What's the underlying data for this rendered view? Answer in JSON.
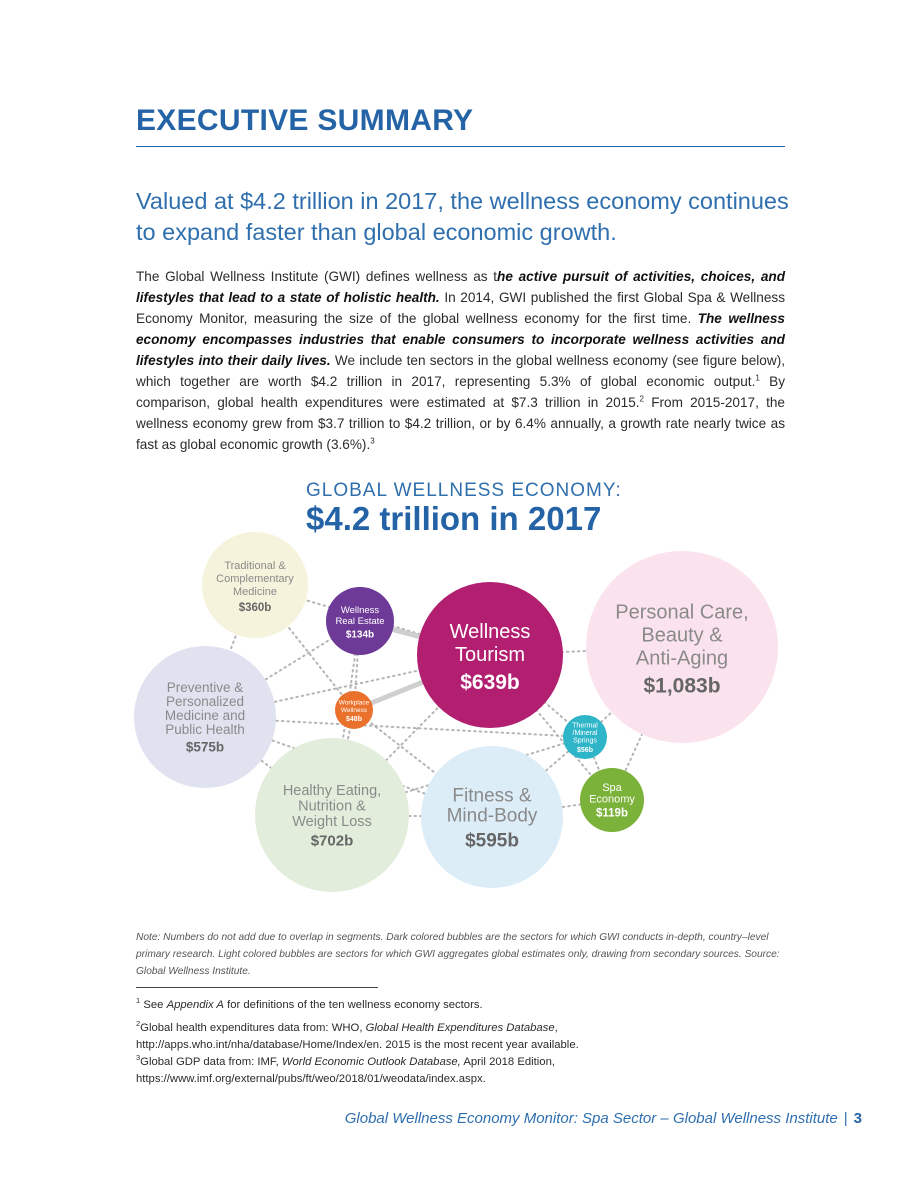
{
  "heading": "EXECUTIVE SUMMARY",
  "subtitle": "Valued at $4.2 trillion in 2017, the wellness economy continues to expand faster than global economic growth.",
  "paragraph": {
    "p1": "The Global Wellness Institute (GWI) defines wellness as t",
    "p1_bold": "he active pursuit of activities, choices, and lifestyles that lead to a state of holistic health.",
    "p2": " In 2014, GWI published the first Global Spa & Wellness Economy Monitor, measuring the size of the global wellness economy for the first time. ",
    "p2_bold": "The wellness economy encompasses industries that enable consumers to incorporate wellness activities and lifestyles into their daily lives.",
    "p3": " We include ten sectors in the global wellness economy (see figure below), which together are worth $4.2 trillion in 2017, representing 5.3% of global economic output.",
    "sup1": "1",
    "p4": " By comparison, global health expenditures were estimated at $7.3 trillion in 2015.",
    "sup2": "2",
    "p5": " From 2015-2017, the wellness economy grew from $3.7 trillion to $4.2 trillion, or by 6.4% annually, a growth rate nearly twice as fast as global economic growth (3.6%).",
    "sup3": "3"
  },
  "figure": {
    "title": "GLOBAL WELLNESS ECONOMY:",
    "main": "$4.2 trillion in 2017"
  },
  "chart_data": {
    "type": "bubble",
    "title": "GLOBAL WELLNESS ECONOMY:",
    "subtitle": "$4.2 trillion in 2017",
    "unit": "$ billions",
    "series": [
      {
        "key": "trad",
        "lines": [
          "Traditional &",
          "Complementary",
          "Medicine"
        ],
        "value_label": "$360b",
        "value": 360,
        "color": "#f6f3dc",
        "text_color": "#8a8a8a",
        "dark": false
      },
      {
        "key": "realestate",
        "lines": [
          "Wellness",
          "Real Estate"
        ],
        "value_label": "$134b",
        "value": 134,
        "color": "#6e3a97",
        "text_color": "#ffffff",
        "dark": true
      },
      {
        "key": "tourism",
        "lines": [
          "Wellness",
          "Tourism"
        ],
        "value_label": "$639b",
        "value": 639,
        "color": "#b21f71",
        "text_color": "#ffffff",
        "dark": true
      },
      {
        "key": "personal",
        "lines": [
          "Personal Care,",
          "Beauty &",
          "Anti-Aging"
        ],
        "value_label": "$1,083b",
        "value": 1083,
        "color": "#fbe3ee",
        "text_color": "#8a8a8a",
        "dark": false
      },
      {
        "key": "preventive",
        "lines": [
          "Preventive &",
          "Personalized",
          "Medicine and",
          "Public Health"
        ],
        "value_label": "$575b",
        "value": 575,
        "color": "#e1e2f0",
        "text_color": "#8a8a8a",
        "dark": false
      },
      {
        "key": "workplace",
        "lines": [
          "Workplace",
          "Wellness"
        ],
        "value_label": "$48b",
        "value": 48,
        "color": "#e9712b",
        "text_color": "#ffffff",
        "dark": true
      },
      {
        "key": "thermal",
        "lines": [
          "Thermal",
          "/Mineral",
          "Springs"
        ],
        "value_label": "$56b",
        "value": 56,
        "color": "#2fb5c8",
        "text_color": "#ffffff",
        "dark": true
      },
      {
        "key": "eating",
        "lines": [
          "Healthy Eating,",
          "Nutrition &",
          "Weight Loss"
        ],
        "value_label": "$702b",
        "value": 702,
        "color": "#e2eedb",
        "text_color": "#8a8a8a",
        "dark": false
      },
      {
        "key": "fitness",
        "lines": [
          "Fitness &",
          "Mind-Body"
        ],
        "value_label": "$595b",
        "value": 595,
        "color": "#dcedf8",
        "text_color": "#8a8a8a",
        "dark": false
      },
      {
        "key": "spa",
        "lines": [
          "Spa",
          "Economy"
        ],
        "value_label": "$119b",
        "value": 119,
        "color": "#7bb239",
        "text_color": "#ffffff",
        "dark": true
      }
    ]
  },
  "note": "Note: Numbers do not add due to overlap in segments. Dark colored bubbles are the sectors for which GWI conducts in-depth, country–level primary research. Light colored bubbles are sectors for which GWI aggregates global estimates only, drawing from secondary sources. Source: Global Wellness Institute.",
  "footnotes": [
    {
      "sup": "1",
      "pre": "See ",
      "italic": "Appendix A",
      "post": " for definitions of the ten wellness economy sectors."
    },
    {
      "sup": "2",
      "pre": "Global health expenditures data from: WHO, ",
      "italic": "Global Health Expenditures Database",
      "post": ", http://apps.who.int/nha/database/Home/Index/en. 2015 is the most recent year available."
    },
    {
      "sup": "3",
      "pre": "Global GDP data from: IMF, ",
      "italic": "World Economic Outlook Database,",
      "post": " April 2018 Edition, https://www.imf.org/external/pubs/ft/weo/2018/01/weodata/index.aspx."
    }
  ],
  "footer": {
    "text": "Global Wellness Economy Monitor: Spa Sector – Global Wellness Institute",
    "separator": "|",
    "page": "3"
  }
}
